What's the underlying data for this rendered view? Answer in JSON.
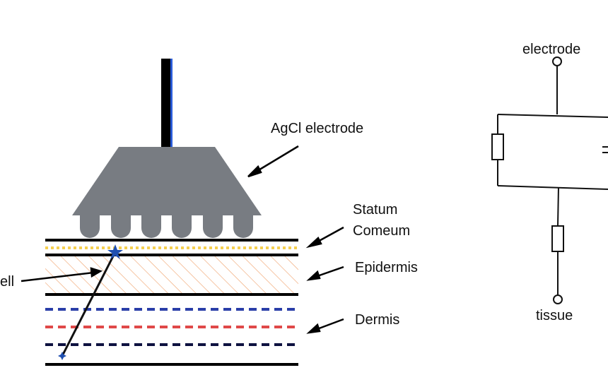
{
  "labels": {
    "electrode_agcl": "AgCl electrode",
    "stratum_line1": "Statum",
    "stratum_line2": "Comeum",
    "epidermis": "Epidermis",
    "dermis": "Dermis",
    "cell": "ell",
    "circuit_top": "electrode",
    "circuit_bottom": "tissue"
  },
  "colors": {
    "electrode_body": "#787c82",
    "stem": "#000000",
    "stem_accent": "#2a5bd7",
    "layer_line": "#000000",
    "stratum_dots": "#f5cf4f",
    "epidermis_hatch": "#f0a068",
    "dermis_blue": "#2a3ea8",
    "dermis_red": "#e04848",
    "dermis_navy": "#0e1240",
    "marker_star": "#1f4fb0"
  }
}
